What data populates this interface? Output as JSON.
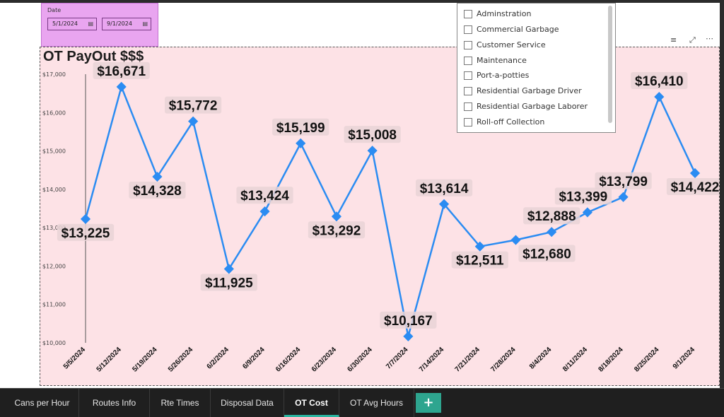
{
  "date_slicer": {
    "title": "Date",
    "start": "5/1/2024",
    "end": "9/1/2024",
    "calendar_icon": "calendar-icon"
  },
  "legend": {
    "items": [
      "Adminstration",
      "Commercial Garbage",
      "Customer Service",
      "Maintenance",
      "Port-a-potties",
      "Residential Garbage Driver",
      "Residential Garbage Laborer",
      "Roll-off Collection"
    ]
  },
  "visual_header": {
    "icons": [
      "filter-icon",
      "focus-mode-icon",
      "more-options-icon"
    ]
  },
  "tabs": [
    "Cans per Hour",
    "Routes Info",
    "Rte Times",
    "Disposal Data",
    "OT Cost",
    "OT Avg Hours"
  ],
  "active_tab": "OT Cost",
  "add_tab_label": "+",
  "colors": {
    "line": "#2b8cf2",
    "panel": "#fde2e6",
    "slicer": "#e9a5f0",
    "label_bg": "#e9d3d6",
    "tab_accent": "#2bb5a0"
  },
  "chart_data": {
    "type": "line",
    "title": "OT PayOut $$$",
    "xlabel": "",
    "ylabel": "",
    "ylim": [
      10000,
      17000
    ],
    "yticks": [
      "$10,000",
      "$11,000",
      "$12,000",
      "$13,000",
      "$14,000",
      "$15,000",
      "$16,000",
      "$17,000"
    ],
    "categories": [
      "5/5/2024",
      "5/12/2024",
      "5/19/2024",
      "5/26/2024",
      "6/2/2024",
      "6/9/2024",
      "6/16/2024",
      "6/23/2024",
      "6/30/2024",
      "7/7/2024",
      "7/14/2024",
      "7/21/2024",
      "7/28/2024",
      "8/4/2024",
      "8/11/2024",
      "8/18/2024",
      "8/25/2024",
      "9/1/2024"
    ],
    "values": [
      13225,
      16671,
      14328,
      15772,
      11925,
      13424,
      15199,
      13292,
      15008,
      10167,
      13614,
      12511,
      12680,
      12888,
      13399,
      13799,
      16410,
      14422
    ],
    "data_labels": [
      "$13,225",
      "$16,671",
      "$14,328",
      "$15,772",
      "$11,925",
      "$13,424",
      "$15,199",
      "$13,292",
      "$15,008",
      "$10,167",
      "$13,614",
      "$12,511",
      "$12,680",
      "$12,888",
      "$13,399",
      "$13,799",
      "$16,410",
      "$14,422"
    ],
    "grid": false,
    "legend": "top-right"
  }
}
